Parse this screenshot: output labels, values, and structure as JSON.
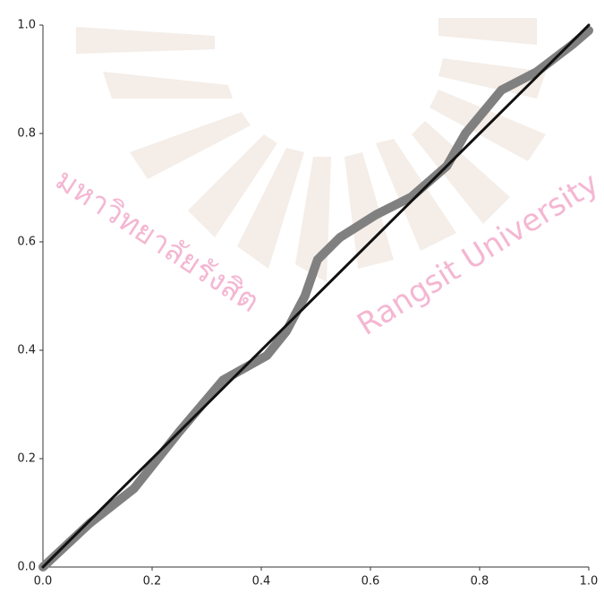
{
  "chart_data": {
    "type": "line",
    "annotations": [
      "มหาวิทยาลัยรังสิต",
      "Rangsit University"
    ],
    "series": [
      {
        "color": "#808080",
        "x": [
          0,
          0.085,
          0.167,
          0.25,
          0.33,
          0.41,
          0.446,
          0.48,
          0.503,
          0.544,
          0.61,
          0.675,
          0.74,
          0.774,
          0.84,
          0.905,
          0.97,
          1.0
        ],
        "values": [
          0,
          0.08,
          0.145,
          0.25,
          0.345,
          0.39,
          0.435,
          0.5,
          0.567,
          0.608,
          0.65,
          0.683,
          0.74,
          0.8,
          0.88,
          0.914,
          0.964,
          0.99
        ]
      },
      {
        "color": "#111111",
        "x": [
          0,
          1.0
        ],
        "values": [
          0,
          1.0
        ]
      }
    ],
    "xlim": [
      0,
      1.0
    ],
    "ylim": [
      0,
      1.0
    ],
    "xticks": [
      {
        "value": 0,
        "label": "0.0"
      },
      0.2,
      0.4,
      0.6,
      0.8,
      {
        "value": 1.0,
        "label": "1.0"
      }
    ],
    "yticks": [
      {
        "value": 0,
        "label": "0.0"
      },
      0.2,
      0.4,
      0.6,
      0.8,
      {
        "value": 1.0,
        "label": "1.0"
      }
    ]
  }
}
